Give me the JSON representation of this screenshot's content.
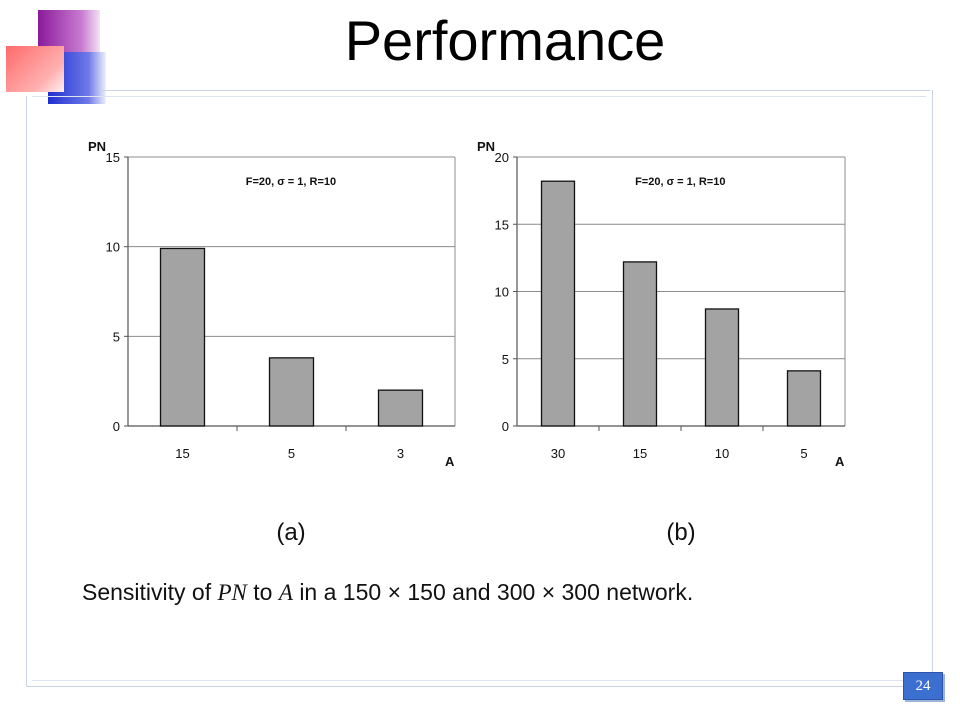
{
  "slide": {
    "title": "Performance",
    "page_number": "24",
    "caption_parts": {
      "prefix": "Sensitivity of ",
      "var1": "PN",
      "mid": " to ",
      "var2": "A",
      "suffix1": " in a 150 ",
      "times1": "×",
      "suffix2": " 150 and 300 ",
      "times2": "×",
      "suffix3": " 300 network."
    }
  },
  "chart_data": [
    {
      "type": "bar",
      "panel_label": "(a)",
      "annotation": "F=20, σ = 1, R=10",
      "xlabel": "A",
      "ylabel": "PN",
      "categories": [
        "15",
        "5",
        "3"
      ],
      "values": [
        9.9,
        3.8,
        2.0
      ],
      "ylim": [
        0,
        15
      ],
      "yticks": [
        "0",
        "5",
        "10",
        "15"
      ],
      "grid": true,
      "bar_color": "#a3a3a3"
    },
    {
      "type": "bar",
      "panel_label": "(b)",
      "annotation": "F=20, σ = 1, R=10",
      "xlabel": "A",
      "ylabel": "PN",
      "categories": [
        "30",
        "15",
        "10",
        "5"
      ],
      "values": [
        18.2,
        12.2,
        8.7,
        4.1
      ],
      "ylim": [
        0,
        20
      ],
      "yticks": [
        "0",
        "5",
        "10",
        "15",
        "20"
      ],
      "grid": true,
      "bar_color": "#a3a3a3"
    }
  ]
}
